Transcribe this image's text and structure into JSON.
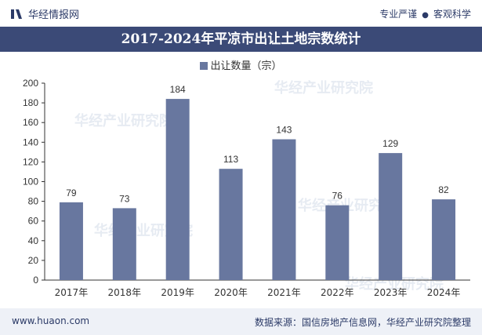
{
  "header": {
    "brand_name": "华经情报网",
    "tagline_left": "专业严谨",
    "tagline_right": "客观科学"
  },
  "footer": {
    "url": "www.huaon.com",
    "source": "数据来源：国信房地产信息网，华经产业研究院整理"
  },
  "colors": {
    "bar": "#68779f",
    "title_bg": "#3b4a77",
    "footer_bg": "#eef1f7",
    "axis": "#333333"
  },
  "chart_data": {
    "type": "bar",
    "title": "2017-2024年平凉市出让土地宗数统计",
    "legend": "出让数量（宗）",
    "categories": [
      "2017年",
      "2018年",
      "2019年",
      "2020年",
      "2021年",
      "2022年",
      "2023年",
      "2024年"
    ],
    "values": [
      79,
      73,
      184,
      113,
      143,
      76,
      129,
      82
    ],
    "ylim": [
      0,
      200
    ],
    "yticks": [
      0,
      20,
      40,
      60,
      80,
      100,
      120,
      140,
      160,
      180,
      200
    ],
    "xlabel": "",
    "ylabel": "",
    "grid": false,
    "legend_position": "top-center"
  }
}
